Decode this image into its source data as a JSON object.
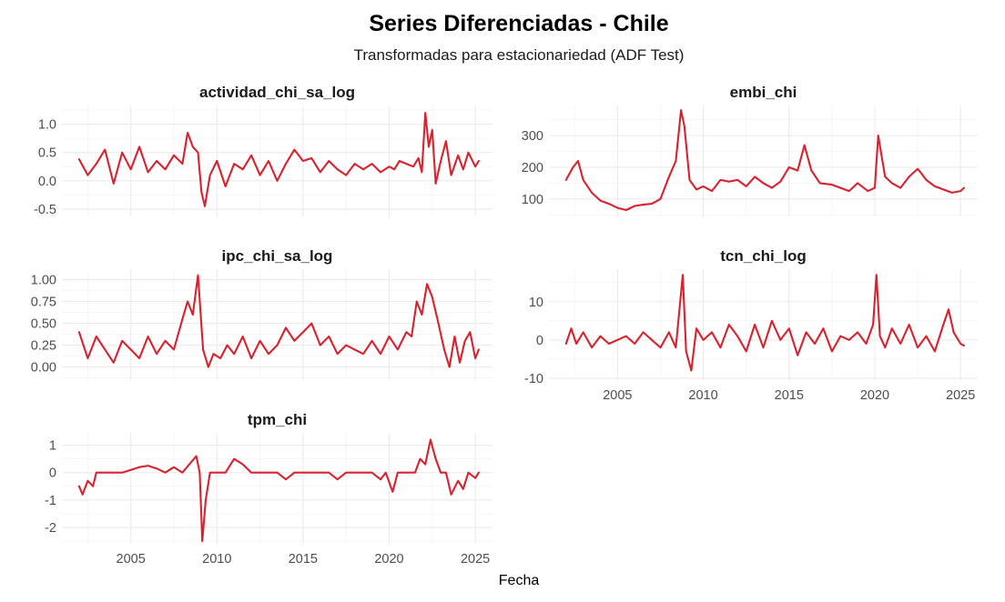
{
  "title": "Series Diferenciadas - Chile",
  "subtitle": "Transformadas para estacionariedad (ADF Test)",
  "xlabel": "Fecha",
  "line_color": "#d7222f",
  "chart_data": [
    {
      "type": "line",
      "title": "actividad_chi_sa_log",
      "xlim": [
        2001.0,
        2026.0
      ],
      "ylim": [
        -0.63,
        1.33
      ],
      "yticks": [
        -0.5,
        0.0,
        0.5,
        1.0
      ],
      "ytick_labels": [
        "-0.5",
        "0.0",
        "0.5",
        "1.0"
      ],
      "xticks": [
        2005,
        2010,
        2015,
        2020,
        2025
      ],
      "xtick_labels": [
        "2005",
        "2010",
        "2015",
        "2020",
        "2025"
      ],
      "show_x_axis": false,
      "grid": true,
      "x": [
        2002.0,
        2002.5,
        2003.0,
        2003.5,
        2004.0,
        2004.5,
        2005.0,
        2005.5,
        2006.0,
        2006.5,
        2007.0,
        2007.5,
        2008.0,
        2008.3,
        2008.6,
        2008.9,
        2009.1,
        2009.3,
        2009.6,
        2010.0,
        2010.5,
        2011.0,
        2011.5,
        2012.0,
        2012.5,
        2013.0,
        2013.5,
        2014.0,
        2014.5,
        2015.0,
        2015.5,
        2016.0,
        2016.5,
        2017.0,
        2017.5,
        2018.0,
        2018.5,
        2019.0,
        2019.5,
        2020.0,
        2020.3,
        2020.6,
        2021.0,
        2021.4,
        2021.7,
        2021.9,
        2022.1,
        2022.3,
        2022.5,
        2022.7,
        2023.0,
        2023.3,
        2023.6,
        2024.0,
        2024.3,
        2024.6,
        2025.0,
        2025.2
      ],
      "y": [
        0.38,
        0.1,
        0.3,
        0.55,
        -0.05,
        0.5,
        0.2,
        0.6,
        0.15,
        0.35,
        0.2,
        0.45,
        0.3,
        0.85,
        0.6,
        0.5,
        -0.2,
        -0.45,
        0.1,
        0.35,
        -0.1,
        0.3,
        0.2,
        0.45,
        0.1,
        0.35,
        0.0,
        0.3,
        0.55,
        0.35,
        0.4,
        0.15,
        0.35,
        0.2,
        0.1,
        0.3,
        0.2,
        0.3,
        0.15,
        0.25,
        0.2,
        0.35,
        0.3,
        0.25,
        0.4,
        0.15,
        1.2,
        0.6,
        0.9,
        -0.05,
        0.35,
        0.7,
        0.1,
        0.45,
        0.2,
        0.5,
        0.25,
        0.35
      ]
    },
    {
      "type": "line",
      "title": "embi_chi",
      "xlim": [
        2001.0,
        2026.0
      ],
      "ylim": [
        45,
        395
      ],
      "yticks": [
        100,
        200,
        300
      ],
      "ytick_labels": [
        "100",
        "200",
        "300"
      ],
      "xticks": [
        2005,
        2010,
        2015,
        2020,
        2025
      ],
      "xtick_labels": [
        "2005",
        "2010",
        "2015",
        "2020",
        "2025"
      ],
      "show_x_axis": false,
      "grid": true,
      "x": [
        2002.0,
        2002.4,
        2002.7,
        2003.0,
        2003.5,
        2004.0,
        2004.5,
        2005.0,
        2005.5,
        2006.0,
        2006.5,
        2007.0,
        2007.5,
        2008.0,
        2008.4,
        2008.7,
        2008.9,
        2009.2,
        2009.6,
        2010.0,
        2010.5,
        2011.0,
        2011.5,
        2012.0,
        2012.5,
        2013.0,
        2013.5,
        2014.0,
        2014.5,
        2015.0,
        2015.5,
        2015.9,
        2016.3,
        2016.8,
        2017.5,
        2018.0,
        2018.5,
        2019.0,
        2019.6,
        2020.0,
        2020.2,
        2020.6,
        2021.0,
        2021.5,
        2022.0,
        2022.5,
        2022.8,
        2023.0,
        2023.5,
        2024.0,
        2024.5,
        2025.0,
        2025.2
      ],
      "y": [
        160,
        200,
        220,
        160,
        120,
        95,
        85,
        72,
        65,
        78,
        82,
        85,
        100,
        170,
        220,
        380,
        330,
        160,
        130,
        140,
        125,
        160,
        155,
        160,
        140,
        170,
        150,
        135,
        155,
        200,
        190,
        270,
        190,
        150,
        145,
        135,
        125,
        150,
        125,
        135,
        300,
        170,
        150,
        135,
        170,
        195,
        175,
        160,
        140,
        130,
        120,
        125,
        135
      ]
    },
    {
      "type": "line",
      "title": "ipc_chi_sa_log",
      "xlim": [
        2001.0,
        2026.0
      ],
      "ylim": [
        -0.15,
        1.12
      ],
      "yticks": [
        0.0,
        0.25,
        0.5,
        0.75,
        1.0
      ],
      "ytick_labels": [
        "0.00",
        "0.25",
        "0.50",
        "0.75",
        "1.00"
      ],
      "xticks": [
        2005,
        2010,
        2015,
        2020,
        2025
      ],
      "xtick_labels": [
        "2005",
        "2010",
        "2015",
        "2020",
        "2025"
      ],
      "show_x_axis": false,
      "grid": true,
      "x": [
        2002.0,
        2002.5,
        2003.0,
        2003.5,
        2004.0,
        2004.5,
        2005.0,
        2005.5,
        2006.0,
        2006.5,
        2007.0,
        2007.5,
        2008.0,
        2008.3,
        2008.6,
        2008.9,
        2009.2,
        2009.5,
        2009.8,
        2010.2,
        2010.6,
        2011.0,
        2011.5,
        2012.0,
        2012.5,
        2013.0,
        2013.5,
        2014.0,
        2014.5,
        2015.0,
        2015.5,
        2016.0,
        2016.5,
        2017.0,
        2017.5,
        2018.0,
        2018.5,
        2019.0,
        2019.5,
        2020.0,
        2020.5,
        2021.0,
        2021.3,
        2021.6,
        2021.9,
        2022.2,
        2022.5,
        2022.8,
        2023.2,
        2023.5,
        2023.8,
        2024.1,
        2024.4,
        2024.7,
        2025.0,
        2025.2
      ],
      "y": [
        0.4,
        0.1,
        0.35,
        0.2,
        0.05,
        0.3,
        0.2,
        0.1,
        0.35,
        0.15,
        0.3,
        0.2,
        0.55,
        0.75,
        0.6,
        1.05,
        0.2,
        0.0,
        0.15,
        0.1,
        0.25,
        0.15,
        0.35,
        0.1,
        0.3,
        0.15,
        0.25,
        0.45,
        0.3,
        0.4,
        0.5,
        0.25,
        0.35,
        0.15,
        0.25,
        0.2,
        0.15,
        0.3,
        0.15,
        0.35,
        0.2,
        0.4,
        0.35,
        0.75,
        0.6,
        0.95,
        0.8,
        0.55,
        0.2,
        0.0,
        0.35,
        0.05,
        0.3,
        0.4,
        0.1,
        0.2
      ]
    },
    {
      "type": "line",
      "title": "tcn_chi_log",
      "xlim": [
        2001.0,
        2026.0
      ],
      "ylim": [
        -10.5,
        18.5
      ],
      "yticks": [
        -10,
        0,
        10
      ],
      "ytick_labels": [
        "-10",
        "0",
        "10"
      ],
      "xticks": [
        2005,
        2010,
        2015,
        2020,
        2025
      ],
      "xtick_labels": [
        "2005",
        "2010",
        "2015",
        "2020",
        "2025"
      ],
      "show_x_axis": true,
      "grid": true,
      "x": [
        2002.0,
        2002.3,
        2002.6,
        2003.0,
        2003.5,
        2004.0,
        2004.5,
        2005.0,
        2005.5,
        2006.0,
        2006.5,
        2007.0,
        2007.5,
        2008.0,
        2008.4,
        2008.8,
        2009.0,
        2009.3,
        2009.6,
        2010.0,
        2010.5,
        2011.0,
        2011.5,
        2012.0,
        2012.5,
        2013.0,
        2013.5,
        2014.0,
        2014.5,
        2015.0,
        2015.5,
        2016.0,
        2016.5,
        2017.0,
        2017.5,
        2018.0,
        2018.5,
        2019.0,
        2019.5,
        2019.9,
        2020.1,
        2020.3,
        2020.6,
        2021.0,
        2021.5,
        2022.0,
        2022.5,
        2023.0,
        2023.5,
        2024.0,
        2024.3,
        2024.6,
        2025.0,
        2025.2
      ],
      "y": [
        -1,
        3,
        -1,
        2,
        -2,
        1,
        -1,
        0,
        1,
        -1,
        2,
        0,
        -2,
        2,
        -2,
        17,
        -3,
        -8,
        3,
        0,
        2,
        -2,
        4,
        1,
        -3,
        4,
        -2,
        5,
        0,
        3,
        -4,
        2,
        -1,
        3,
        -3,
        1,
        0,
        2,
        -1,
        4,
        17,
        1,
        -2,
        3,
        -1,
        4,
        -2,
        1,
        -3,
        4,
        8,
        2,
        -1,
        -1.5
      ]
    },
    {
      "type": "line",
      "title": "tpm_chi",
      "xlim": [
        2001.0,
        2026.0
      ],
      "ylim": [
        -2.6,
        1.45
      ],
      "yticks": [
        -2,
        -1,
        0,
        1
      ],
      "ytick_labels": [
        "-2",
        "-1",
        "0",
        "1"
      ],
      "xticks": [
        2005,
        2010,
        2015,
        2020,
        2025
      ],
      "xtick_labels": [
        "2005",
        "2010",
        "2015",
        "2020",
        "2025"
      ],
      "show_x_axis": true,
      "grid": true,
      "x": [
        2002.0,
        2002.2,
        2002.5,
        2002.8,
        2003.0,
        2003.5,
        2004.0,
        2004.5,
        2005.0,
        2005.5,
        2006.0,
        2006.5,
        2007.0,
        2007.5,
        2008.0,
        2008.4,
        2008.8,
        2009.0,
        2009.15,
        2009.35,
        2009.6,
        2010.0,
        2010.5,
        2011.0,
        2011.5,
        2012.0,
        2012.5,
        2013.0,
        2013.5,
        2014.0,
        2014.5,
        2015.0,
        2015.5,
        2016.0,
        2016.5,
        2017.0,
        2017.5,
        2018.0,
        2018.5,
        2019.0,
        2019.5,
        2019.8,
        2020.2,
        2020.5,
        2021.0,
        2021.5,
        2021.8,
        2022.1,
        2022.4,
        2022.7,
        2023.0,
        2023.3,
        2023.6,
        2024.0,
        2024.3,
        2024.6,
        2025.0,
        2025.2
      ],
      "y": [
        -0.5,
        -0.8,
        -0.3,
        -0.5,
        0.0,
        0.0,
        0.0,
        0.0,
        0.1,
        0.2,
        0.25,
        0.15,
        0.0,
        0.2,
        0.0,
        0.3,
        0.6,
        0.0,
        -2.5,
        -1.0,
        0.0,
        0.0,
        0.0,
        0.5,
        0.3,
        0.0,
        0.0,
        0.0,
        0.0,
        -0.25,
        0.0,
        0.0,
        0.0,
        0.0,
        0.0,
        -0.25,
        0.0,
        0.0,
        0.0,
        0.0,
        -0.25,
        0.0,
        -0.7,
        0.0,
        0.0,
        0.0,
        0.5,
        0.3,
        1.2,
        0.5,
        0.0,
        0.0,
        -0.8,
        -0.3,
        -0.6,
        0.0,
        -0.2,
        0.0
      ]
    }
  ]
}
